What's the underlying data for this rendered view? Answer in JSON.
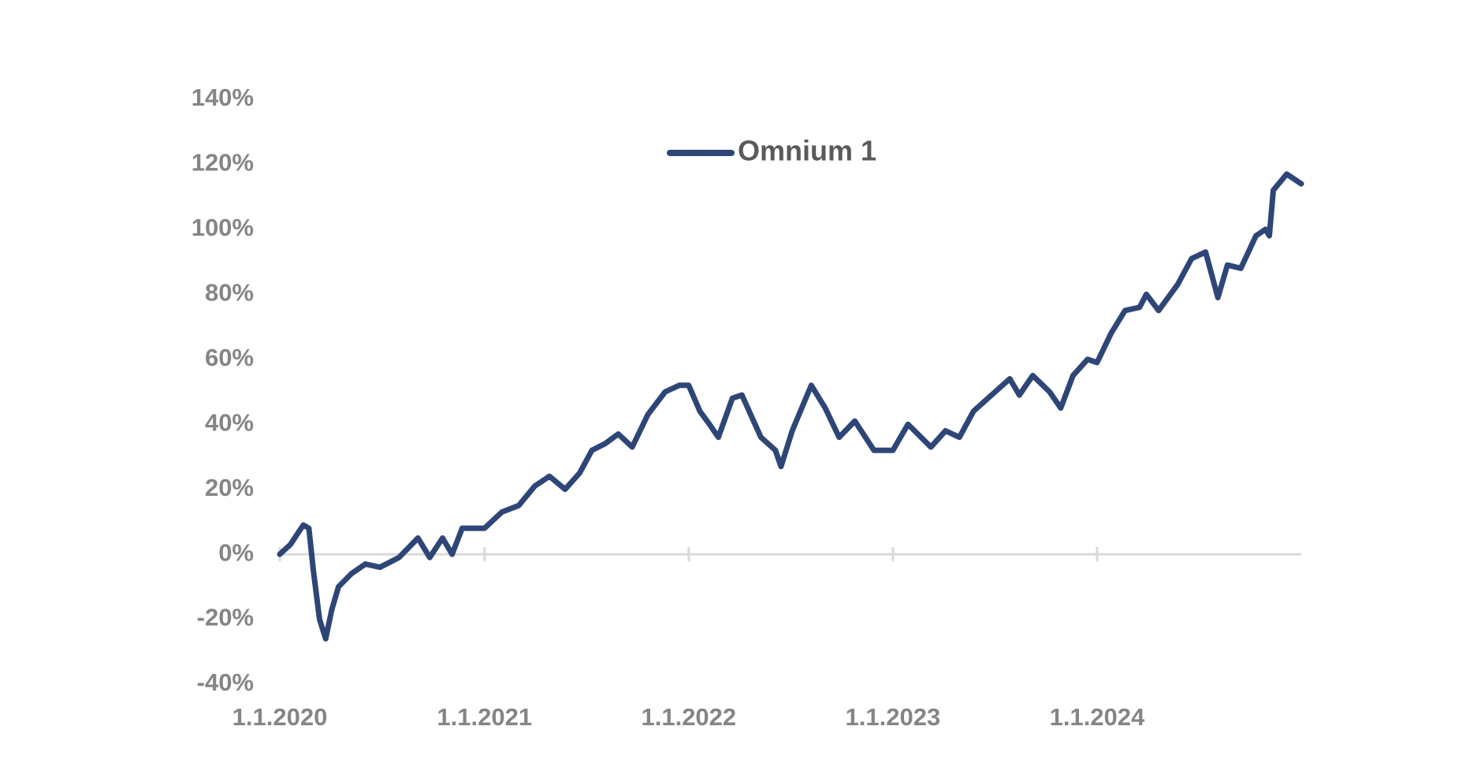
{
  "chart_data": {
    "type": "line",
    "x": [
      "2020-01-01",
      "2020-01-20",
      "2020-02-12",
      "2020-02-22",
      "2020-03-01",
      "2020-03-12",
      "2020-03-23",
      "2020-04-03",
      "2020-04-15",
      "2020-05-08",
      "2020-06-02",
      "2020-06-28",
      "2020-08-01",
      "2020-09-04",
      "2020-09-25",
      "2020-10-18",
      "2020-11-04",
      "2020-11-22",
      "2020-12-10",
      "2021-01-01",
      "2021-02-01",
      "2021-03-03",
      "2021-04-01",
      "2021-04-27",
      "2021-05-25",
      "2021-06-20",
      "2021-07-12",
      "2021-08-04",
      "2021-08-28",
      "2021-09-22",
      "2021-10-20",
      "2021-11-20",
      "2021-12-15",
      "2022-01-01",
      "2022-01-21",
      "2022-02-07",
      "2022-02-23",
      "2022-03-20",
      "2022-04-06",
      "2022-05-10",
      "2022-06-05",
      "2022-06-15",
      "2022-07-05",
      "2022-08-08",
      "2022-09-02",
      "2022-09-27",
      "2022-10-25",
      "2022-11-28",
      "2023-01-01",
      "2023-01-28",
      "2023-03-10",
      "2023-04-05",
      "2023-04-30",
      "2023-05-25",
      "2023-06-20",
      "2023-07-29",
      "2023-08-15",
      "2023-09-08",
      "2023-10-08",
      "2023-10-28",
      "2023-11-19",
      "2023-12-15",
      "2024-01-01",
      "2024-01-26",
      "2024-02-20",
      "2024-03-17",
      "2024-03-29",
      "2024-04-20",
      "2024-05-24",
      "2024-06-18",
      "2024-07-13",
      "2024-08-04",
      "2024-08-21",
      "2024-09-14",
      "2024-10-11",
      "2024-10-28",
      "2024-11-04",
      "2024-11-11",
      "2024-12-05",
      "2024-12-31"
    ],
    "series": [
      {
        "name": "Omnium 1",
        "color": "#2e4677",
        "values": [
          0,
          3,
          9,
          8,
          -5,
          -20,
          -26,
          -17,
          -10,
          -6,
          -3,
          -4,
          -1,
          5,
          -1,
          5,
          0,
          8,
          8,
          8,
          13,
          15,
          21,
          24,
          20,
          25,
          32,
          34,
          37,
          33,
          43,
          50,
          52,
          52,
          44,
          40,
          36,
          48,
          49,
          36,
          32,
          27,
          38,
          52,
          45,
          36,
          41,
          32,
          32,
          40,
          33,
          38,
          36,
          44,
          48,
          54,
          49,
          55,
          50,
          45,
          55,
          60,
          59,
          68,
          75,
          76,
          80,
          75,
          83,
          91,
          93,
          79,
          89,
          88,
          98,
          100,
          98,
          112,
          117,
          114
        ]
      }
    ],
    "xlim": [
      "2020-01-01",
      "2024-12-31"
    ],
    "xticks": [
      {
        "value": "2020-01-01",
        "label": "1.1.2020"
      },
      {
        "value": "2021-01-01",
        "label": "1.1.2021"
      },
      {
        "value": "2022-01-01",
        "label": "1.1.2022"
      },
      {
        "value": "2023-01-01",
        "label": "1.1.2023"
      },
      {
        "value": "2024-01-01",
        "label": "1.1.2024"
      }
    ],
    "ylim": [
      -40,
      140
    ],
    "yticks": [
      {
        "value": -40,
        "label": "-40%"
      },
      {
        "value": -20,
        "label": "-20%"
      },
      {
        "value": 0,
        "label": "0%"
      },
      {
        "value": 20,
        "label": "20%"
      },
      {
        "value": 40,
        "label": "40%"
      },
      {
        "value": 60,
        "label": "60%"
      },
      {
        "value": 80,
        "label": "80%"
      },
      {
        "value": 100,
        "label": "100%"
      },
      {
        "value": 120,
        "label": "120%"
      },
      {
        "value": 140,
        "label": "140%"
      }
    ],
    "grid": false,
    "legend": "top"
  }
}
